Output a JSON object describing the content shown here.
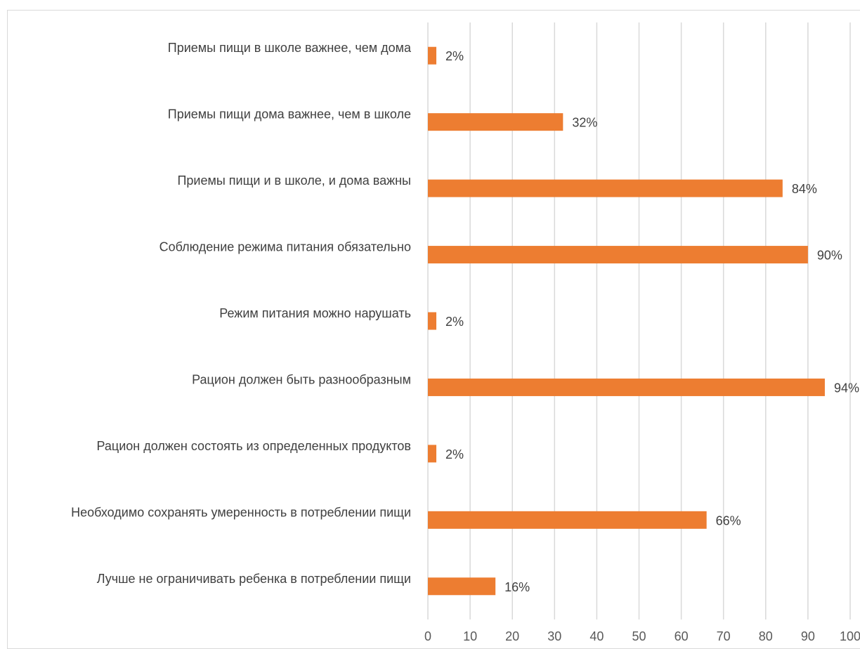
{
  "chart_data": {
    "type": "bar",
    "orientation": "horizontal",
    "categories": [
      "Приемы пищи в школе важнее, чем дома",
      "Приемы пищи дома важнее, чем в школе",
      "Приемы пищи и в школе, и дома важны",
      "Соблюдение режима питания обязательно",
      "Режим питания можно нарушать",
      "Рацион должен быть разнообразным",
      "Рацион должен состоять из определенных продуктов",
      "Необходимо сохранять умеренность в потреблении пищи",
      "Лучше не ограничивать ребенка в потреблении пищи"
    ],
    "values": [
      2,
      32,
      84,
      90,
      2,
      94,
      2,
      66,
      16
    ],
    "data_labels": [
      "2%",
      "32%",
      "84%",
      "90%",
      "2%",
      "94%",
      "2%",
      "66%",
      "16%"
    ],
    "xlim": [
      0,
      100
    ],
    "x_ticks": [
      "0",
      "10",
      "20",
      "30",
      "40",
      "50",
      "60",
      "70",
      "80",
      "90",
      "100"
    ],
    "grid": true,
    "legend": "none",
    "bar_color": "#ED7D31"
  }
}
